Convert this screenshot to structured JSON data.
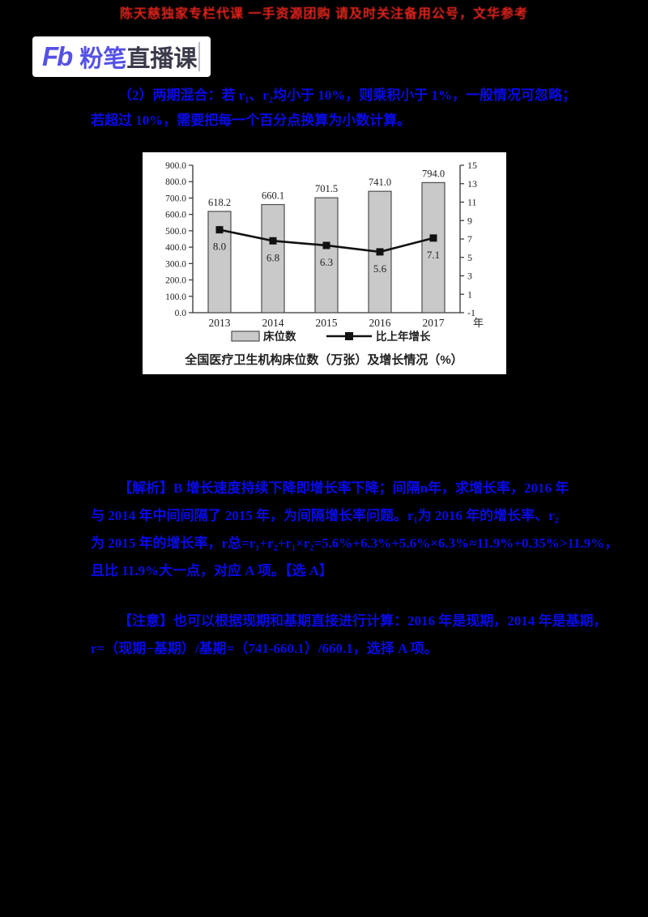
{
  "banner": {
    "text": "陈天慈独家专栏代课 一手资源团购 请及时关注备用公号，文华参考",
    "color": "#e2241d"
  },
  "logo": {
    "mark": "Fb",
    "brand_colored": "粉笔",
    "brand_dark": "直播课"
  },
  "note": {
    "lines": [
      "（2）两期混合：若 r₁、r₂均小于 10%，则乘积小于 1%，一般情况可忽略；",
      "若超过 10%，需要把每一个百分点换算为小数计算。"
    ]
  },
  "chart_data": {
    "type": "bar+line",
    "title": "全国医疗卫生机构床位数（万张）及增长情况（%）",
    "categories": [
      "2013",
      "2014",
      "2015",
      "2016",
      "2017"
    ],
    "x_axis_suffix": "年",
    "series": [
      {
        "name": "床位数",
        "type": "bar",
        "axis": "left",
        "values": [
          618.2,
          660.1,
          701.5,
          741.0,
          794.0
        ],
        "color": "#c9c9c9",
        "border": "#4d4d4d"
      },
      {
        "name": "比上年增长",
        "type": "line",
        "axis": "right",
        "values": [
          8.0,
          6.8,
          6.3,
          5.6,
          7.1
        ],
        "color": "#111111"
      }
    ],
    "left_axis": {
      "min": 0,
      "max": 900,
      "step": 100,
      "decimals": 1
    },
    "right_axis": {
      "min": -1,
      "max": 15,
      "step": 2,
      "decimals": 0
    },
    "legend": [
      "床位数",
      "比上年增长"
    ],
    "grid": false,
    "legend_position": "bottom"
  },
  "analysis": {
    "lines": [
      "【解析】B 增长速度持续下降即增长率下降；间隔n年，求增长率，2016 年",
      "与 2014 年中间间隔了 2015 年，为间隔增长率问题。r₁为 2016 年的增长率、r₂",
      "为 2015 年的增长率，r总=r₁+r₂+r₁×r₂=5.6%+6.3%+5.6%×6.3%≈11.9%+0.35%>11.9%，",
      "且比 11.9%大一点，对应 A 项。【选 A】"
    ]
  },
  "notice": {
    "lines": [
      "【注意】也可以根据现期和基期直接进行计算：2016 年是现期，2014 年是基期，",
      "r=（现期−基期）/基期=（741-660.1）/660.1，选择 A 项。"
    ]
  }
}
